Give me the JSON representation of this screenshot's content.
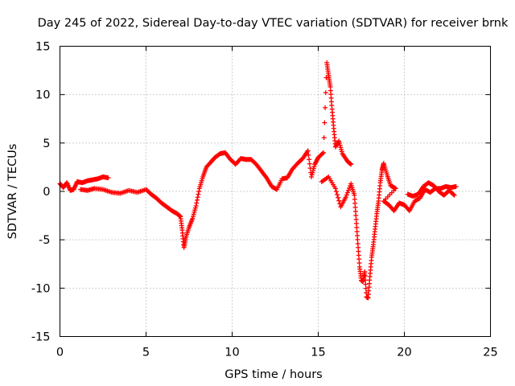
{
  "chart_data": {
    "type": "scatter",
    "title": "Day 245 of 2022, Sidereal Day-to-day VTEC variation (SDTVAR) for receiver brnk",
    "xlabel": "GPS time / hours",
    "ylabel": "SDTVAR / TECUs",
    "xlim": [
      0,
      25
    ],
    "ylim": [
      -15,
      15
    ],
    "xticks": [
      0,
      5,
      10,
      15,
      20,
      25
    ],
    "yticks": [
      -15,
      -10,
      -5,
      0,
      5,
      10,
      15
    ],
    "grid": true,
    "marker": "plus",
    "color": "#ff0000",
    "series": [
      {
        "name": "brnk",
        "points": [
          [
            0.0,
            0.8
          ],
          [
            0.2,
            0.4
          ],
          [
            0.4,
            0.9
          ],
          [
            0.6,
            0.1
          ],
          [
            0.8,
            0.2
          ],
          [
            1.0,
            1.0
          ],
          [
            1.3,
            0.9
          ],
          [
            1.6,
            1.1
          ],
          [
            1.9,
            1.2
          ],
          [
            2.2,
            1.3
          ],
          [
            2.5,
            1.5
          ],
          [
            2.8,
            1.4
          ],
          [
            1.2,
            0.2
          ],
          [
            1.6,
            0.1
          ],
          [
            2.0,
            0.3
          ],
          [
            2.5,
            0.2
          ],
          [
            3.0,
            -0.1
          ],
          [
            3.5,
            -0.2
          ],
          [
            4.0,
            0.1
          ],
          [
            4.5,
            -0.1
          ],
          [
            5.0,
            0.2
          ],
          [
            5.3,
            -0.3
          ],
          [
            5.6,
            -0.7
          ],
          [
            5.9,
            -1.2
          ],
          [
            6.2,
            -1.6
          ],
          [
            6.5,
            -2.0
          ],
          [
            6.8,
            -2.3
          ],
          [
            7.0,
            -2.6
          ],
          [
            7.1,
            -4.0
          ],
          [
            7.2,
            -5.8
          ],
          [
            7.3,
            -4.8
          ],
          [
            7.5,
            -3.7
          ],
          [
            7.7,
            -2.8
          ],
          [
            7.9,
            -1.5
          ],
          [
            8.1,
            0.3
          ],
          [
            8.3,
            1.5
          ],
          [
            8.5,
            2.5
          ],
          [
            8.8,
            3.1
          ],
          [
            9.0,
            3.5
          ],
          [
            9.3,
            3.9
          ],
          [
            9.6,
            4.0
          ],
          [
            9.9,
            3.3
          ],
          [
            10.2,
            2.8
          ],
          [
            10.5,
            3.4
          ],
          [
            10.8,
            3.3
          ],
          [
            11.1,
            3.3
          ],
          [
            11.4,
            2.8
          ],
          [
            11.7,
            2.1
          ],
          [
            12.0,
            1.4
          ],
          [
            12.3,
            0.5
          ],
          [
            12.6,
            0.2
          ],
          [
            12.9,
            1.3
          ],
          [
            13.2,
            1.4
          ],
          [
            13.5,
            2.3
          ],
          [
            13.8,
            2.9
          ],
          [
            14.1,
            3.4
          ],
          [
            14.4,
            4.2
          ],
          [
            14.6,
            1.5
          ],
          [
            14.8,
            2.8
          ],
          [
            15.0,
            3.5
          ],
          [
            15.3,
            4.0
          ],
          [
            15.5,
            13.3
          ],
          [
            15.6,
            12.0
          ],
          [
            15.7,
            10.8
          ],
          [
            15.8,
            8.5
          ],
          [
            15.9,
            6.5
          ],
          [
            16.0,
            4.6
          ],
          [
            16.2,
            5.2
          ],
          [
            16.4,
            3.9
          ],
          [
            16.7,
            3.1
          ],
          [
            16.9,
            2.8
          ],
          [
            15.2,
            1.0
          ],
          [
            15.6,
            1.5
          ],
          [
            16.0,
            0.3
          ],
          [
            16.3,
            -1.6
          ],
          [
            16.6,
            -0.6
          ],
          [
            16.9,
            0.8
          ],
          [
            17.1,
            -0.4
          ],
          [
            17.2,
            -2.9
          ],
          [
            17.3,
            -5.4
          ],
          [
            17.4,
            -7.8
          ],
          [
            17.5,
            -9.2
          ],
          [
            17.6,
            -9.3
          ],
          [
            17.7,
            -8.3
          ],
          [
            17.8,
            -10.9
          ],
          [
            17.9,
            -11.0
          ],
          [
            18.0,
            -8.8
          ],
          [
            18.1,
            -6.8
          ],
          [
            18.2,
            -5.5
          ],
          [
            18.3,
            -3.9
          ],
          [
            18.4,
            -2.3
          ],
          [
            18.5,
            -1.0
          ],
          [
            18.6,
            0.9
          ],
          [
            18.7,
            2.2
          ],
          [
            18.8,
            2.9
          ],
          [
            19.0,
            1.7
          ],
          [
            19.2,
            0.6
          ],
          [
            19.5,
            0.3
          ],
          [
            18.8,
            -1.0
          ],
          [
            19.1,
            -1.4
          ],
          [
            19.4,
            -2.0
          ],
          [
            19.7,
            -1.2
          ],
          [
            20.0,
            -1.4
          ],
          [
            20.3,
            -2.0
          ],
          [
            20.6,
            -1.0
          ],
          [
            20.9,
            -0.7
          ],
          [
            21.2,
            0.2
          ],
          [
            21.5,
            -0.1
          ],
          [
            21.8,
            0.3
          ],
          [
            22.1,
            0.3
          ],
          [
            22.4,
            0.5
          ],
          [
            22.7,
            0.4
          ],
          [
            23.0,
            0.5
          ],
          [
            20.2,
            -0.3
          ],
          [
            20.5,
            -0.5
          ],
          [
            20.8,
            -0.3
          ],
          [
            21.1,
            0.5
          ],
          [
            21.4,
            0.9
          ],
          [
            21.7,
            0.6
          ],
          [
            22.0,
            0.0
          ],
          [
            22.3,
            -0.4
          ],
          [
            22.6,
            0.1
          ],
          [
            22.9,
            -0.4
          ]
        ]
      }
    ]
  }
}
